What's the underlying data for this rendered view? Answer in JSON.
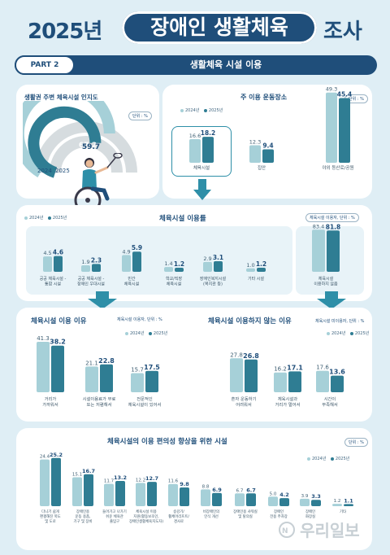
{
  "header": {
    "year": "2025년",
    "title": "장애인 생활체육",
    "suffix": "조사",
    "part": "PART 2",
    "part_title": "생활체육 시설 이용"
  },
  "colors": {
    "y2024": "#a6d0d8",
    "y2025": "#2f7d93",
    "navy": "#1f4e7a",
    "accent": "#2e8fa8"
  },
  "legend": {
    "y2024": "2024년",
    "y2025": "2025년"
  },
  "watermark": "우리일보",
  "awareness": {
    "title": "생활권 주변 체육시설 인지도",
    "unit": "단위 : %",
    "year_a": "2024",
    "year_b": "2025"
  },
  "main_place": {
    "title": "주 이용 운동장소",
    "unit": "단위 : %"
  },
  "usage_rate": {
    "title": "체육시설 이용률",
    "unit": "체육시설 이용자, 단위 : %"
  },
  "reasons_use": {
    "title": "체육시설 이용 이유",
    "unit": "체육시설 이용자, 단위 : %"
  },
  "reasons_not": {
    "title": "체육시설 이용하지 않는 이유",
    "unit": "체육시설 미이용자, 단위 : %"
  },
  "improvement": {
    "title": "체육시설의 이용 편의성 향상을 위한 시설",
    "unit": "단위 : %"
  },
  "chart_data": [
    {
      "type": "gauge",
      "title": "생활권 주변 체육시설 인지도",
      "categories": [
        "2024",
        "2025"
      ],
      "series": [
        {
          "name": "",
          "values": [
            67.2,
            59.7
          ]
        }
      ],
      "unit": "%"
    },
    {
      "type": "bar",
      "title": "주 이용 운동장소",
      "categories": [
        "체육시설",
        "집안",
        "야외 등산로/공원"
      ],
      "series": [
        {
          "name": "2024년",
          "values": [
            16.6,
            12.3,
            49.3
          ]
        },
        {
          "name": "2025년",
          "values": [
            18.2,
            9.4,
            45.4
          ]
        }
      ],
      "unit": "%"
    },
    {
      "type": "bar",
      "title": "체육시설 이용률",
      "categories": [
        "공공 체육시설 -\n통합 시설",
        "공공 체육시설 -\n장애인 우대시설",
        "민간\n체육시설",
        "학교/직장\n체육시설",
        "장애인복지시설\n(복지관 등)",
        "기타 시설",
        "체육시설\n이용하지 않음"
      ],
      "series": [
        {
          "name": "2024년",
          "values": [
            4.5,
            1.9,
            4.9,
            1.4,
            2.9,
            1.0,
            83.4
          ]
        },
        {
          "name": "2025년",
          "values": [
            4.6,
            2.3,
            5.9,
            1.2,
            3.1,
            1.2,
            81.8
          ]
        }
      ],
      "unit": "%"
    },
    {
      "type": "bar",
      "title": "체육시설 이용 이유",
      "categories": [
        "거리가\n가까워서",
        "시설이용료가 무료\n또는 저렴해서",
        "전문적인\n체육시설이 있어서"
      ],
      "series": [
        {
          "name": "2024년",
          "values": [
            41.3,
            21.1,
            15.7
          ]
        },
        {
          "name": "2025년",
          "values": [
            38.2,
            22.8,
            17.5
          ]
        }
      ],
      "unit": "%"
    },
    {
      "type": "bar",
      "title": "체육시설 이용하지 않는 이유",
      "categories": [
        "혼자 운동하기\n어려워서",
        "체육시설과\n거리가 멀어서",
        "시간이\n부족해서"
      ],
      "series": [
        {
          "name": "2024년",
          "values": [
            27.8,
            16.2,
            17.6
          ]
        },
        {
          "name": "2025년",
          "values": [
            26.8,
            17.1,
            13.6
          ]
        }
      ],
      "unit": "%"
    },
    {
      "type": "bar",
      "title": "체육시설의 이용 편의성 향상을 위한 시설",
      "categories": [
        "다니기 쉽게\n편평해진 복도\n및 도로",
        "장애인용\n운동 용품,\n기구 및 장비",
        "들어가고 나가기\n쉬운 체육관\n출입구",
        "체육시설 이용\n지원(활동보조인,\n장애인생활체육지도자)",
        "승강기/\n휠체어리프트/\n경사로",
        "비장애인의\n인식 개선",
        "장애인용 샤워실\n및 탈의실",
        "장애인\n전용 주차장",
        "장애인\n화장실",
        "기타"
      ],
      "series": [
        {
          "name": "2024년",
          "values": [
            24.4,
            15.1,
            11.7,
            12.2,
            11.6,
            8.8,
            6.7,
            5.0,
            3.9,
            1.2
          ]
        },
        {
          "name": "2025년",
          "values": [
            25.2,
            16.7,
            13.2,
            12.7,
            9.8,
            6.9,
            6.7,
            4.2,
            3.3,
            1.1
          ]
        }
      ],
      "unit": "%"
    }
  ]
}
